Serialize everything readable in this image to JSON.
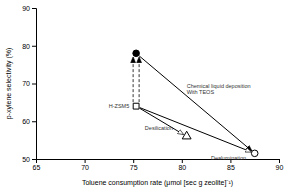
{
  "chart_data": {
    "type": "scatter",
    "title": "",
    "xlabel": "Toluene consumption rate (μmol [sec g zeolite]⁻¹)",
    "ylabel": "p-xylene selectivity (%)",
    "xlim": [
      65,
      90
    ],
    "ylim": [
      50,
      90
    ],
    "xticks": [
      65,
      70,
      75,
      80,
      85,
      90
    ],
    "yticks": [
      50,
      60,
      70,
      80,
      90
    ],
    "color": "black",
    "series": [
      {
        "x": [
          75.3
        ],
        "values": [
          64.0
        ],
        "marker": "open-square"
      },
      {
        "x": [
          75.3
        ],
        "values": [
          78.0
        ],
        "marker": "filled-circle"
      },
      {
        "x": [
          80.5
        ],
        "values": [
          56.0
        ],
        "marker": "open-triangle"
      },
      {
        "x": [
          87.5
        ],
        "values": [
          51.5
        ],
        "marker": "open-circle"
      }
    ],
    "arrows": [
      {
        "from": [
          75.3,
          64.0
        ],
        "to": [
          75.3,
          78.0
        ],
        "line_style": "dashed",
        "marker": "filled-arrow"
      },
      {
        "from": [
          75.3,
          78.0
        ],
        "to": [
          87.5,
          51.5
        ],
        "line_style": "solid",
        "marker": "filled-arrow"
      },
      {
        "from": [
          75.3,
          64.0
        ],
        "to": [
          80.5,
          56.0
        ],
        "line_style": "solid",
        "marker": "open-arrow"
      },
      {
        "from": [
          75.3,
          64.0
        ],
        "to": [
          87.5,
          51.5
        ],
        "line_style": "solid",
        "marker": "open-arrow"
      }
    ],
    "annotations": [
      {
        "text": "H-ZSM5",
        "x": 74.8,
        "y": 64.0
      },
      {
        "text": "Desilication",
        "x": 76.2,
        "y": 59.0
      },
      {
        "text": "Dealumination",
        "x": 83.0,
        "y": 51.0
      },
      {
        "text": "Chemical liquid deposition\nWith TEOS",
        "x": 80.5,
        "y": 68.5
      }
    ]
  }
}
